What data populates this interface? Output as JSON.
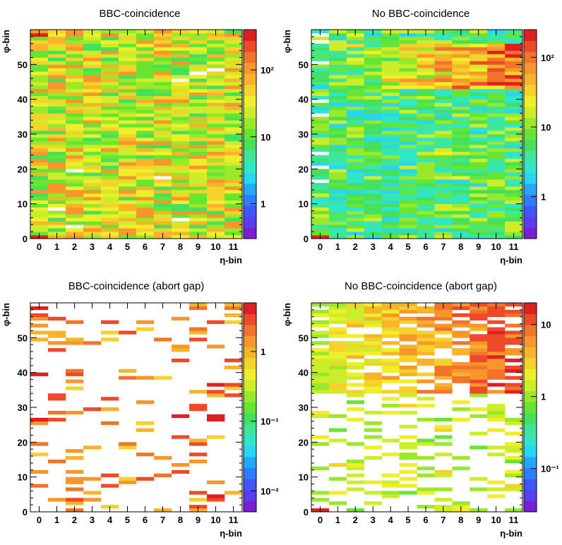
{
  "colors": {
    "palette": [
      "#7a1fd6",
      "#5b3cf2",
      "#3f55ff",
      "#2f7dff",
      "#25a6ff",
      "#27d6f0",
      "#2fe6c8",
      "#3de69a",
      "#45e05e",
      "#66e632",
      "#9ae82a",
      "#ccee2a",
      "#eeee2a",
      "#f5d22a",
      "#f7b42a",
      "#f7962a",
      "#f2742a",
      "#ee4a2a",
      "#e02020"
    ]
  },
  "chart_data": [
    {
      "type": "heatmap",
      "title": "BBC-coincidence",
      "xlabel": "η-bin",
      "ylabel": "φ-bin",
      "x_ticks": [
        "0",
        "1",
        "2",
        "3",
        "4",
        "5",
        "6",
        "7",
        "8",
        "9",
        "10",
        "11"
      ],
      "y_ticks": [
        "0",
        "10",
        "20",
        "30",
        "40",
        "50"
      ],
      "z_scale": "log",
      "z_range": [
        0.3,
        400
      ],
      "z_ticks": [
        {
          "value": 1,
          "label": "1"
        },
        {
          "value": 10,
          "label": "10"
        },
        {
          "value": 100,
          "label": "10²"
        }
      ],
      "profile": "a",
      "x_bins": 12,
      "y_bins": 60
    },
    {
      "type": "heatmap",
      "title": "No BBC-coincidence",
      "xlabel": "η-bin",
      "ylabel": "φ-bin",
      "x_ticks": [
        "0",
        "1",
        "2",
        "3",
        "4",
        "5",
        "6",
        "7",
        "8",
        "9",
        "10",
        "11"
      ],
      "y_ticks": [
        "0",
        "10",
        "20",
        "30",
        "40",
        "50"
      ],
      "z_scale": "log",
      "z_range": [
        0.25,
        250
      ],
      "z_ticks": [
        {
          "value": 1,
          "label": "1"
        },
        {
          "value": 10,
          "label": "10"
        },
        {
          "value": 100,
          "label": "10²"
        }
      ],
      "profile": "b",
      "x_bins": 12,
      "y_bins": 60
    },
    {
      "type": "heatmap",
      "title": "BBC-coincidence (abort gap)",
      "xlabel": "η-bin",
      "ylabel": "φ-bin",
      "x_ticks": [
        "0",
        "1",
        "2",
        "3",
        "4",
        "5",
        "6",
        "7",
        "8",
        "9",
        "10",
        "11"
      ],
      "y_ticks": [
        "0",
        "10",
        "20",
        "30",
        "40",
        "50"
      ],
      "z_scale": "log",
      "z_range": [
        0.005,
        5
      ],
      "z_ticks": [
        {
          "value": 0.01,
          "label": "10⁻²"
        },
        {
          "value": 0.1,
          "label": "10⁻¹"
        },
        {
          "value": 1,
          "label": "1"
        }
      ],
      "profile": "c",
      "x_bins": 12,
      "y_bins": 60
    },
    {
      "type": "heatmap",
      "title": "No BBC-coincidence (abort gap)",
      "xlabel": "η-bin",
      "ylabel": "φ-bin",
      "x_ticks": [
        "0",
        "1",
        "2",
        "3",
        "4",
        "5",
        "6",
        "7",
        "8",
        "9",
        "10",
        "11"
      ],
      "y_ticks": [
        "0",
        "10",
        "20",
        "30",
        "40",
        "50"
      ],
      "z_scale": "log",
      "z_range": [
        0.025,
        20
      ],
      "z_ticks": [
        {
          "value": 0.1,
          "label": "10⁻¹"
        },
        {
          "value": 1,
          "label": "1"
        },
        {
          "value": 10,
          "label": "10"
        }
      ],
      "profile": "d",
      "x_bins": 12,
      "y_bins": 60
    }
  ]
}
